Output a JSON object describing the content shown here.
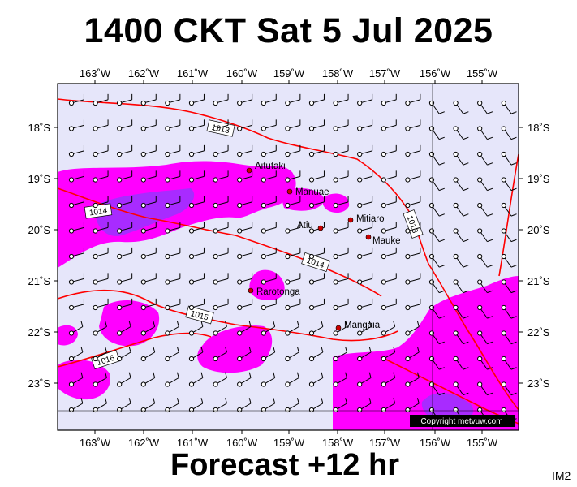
{
  "title": "1400 CKT Sat 5 Jul 2025",
  "footer": "Forecast +12 hr",
  "corner_tag": "IM2",
  "copyright": "Copyright metvuw.com",
  "map": {
    "lon_labels": [
      "163˚W",
      "162˚W",
      "161˚W",
      "160˚W",
      "159˚W",
      "158˚W",
      "157˚W",
      "156˚W",
      "155˚W"
    ],
    "lat_labels": [
      "18˚S",
      "19˚S",
      "20˚S",
      "21˚S",
      "22˚S",
      "23˚S"
    ],
    "colors": {
      "ocean": "#e6e6fa",
      "rain_light": "#ff00ff",
      "rain_heavy": "#9933ff",
      "isobar": "#ff0000",
      "town_dot": "#cc0000"
    },
    "places": [
      {
        "name": "Aitutaki"
      },
      {
        "name": "Manuae"
      },
      {
        "name": "Atiu"
      },
      {
        "name": "Mitiaro"
      },
      {
        "name": "Mauke"
      },
      {
        "name": "Rarotonga"
      },
      {
        "name": "Mangaia"
      }
    ],
    "isobars": [
      {
        "label": "1013"
      },
      {
        "label": "1013"
      },
      {
        "label": "1014"
      },
      {
        "label": "1014"
      },
      {
        "label": "1015"
      },
      {
        "label": "1016"
      }
    ]
  }
}
